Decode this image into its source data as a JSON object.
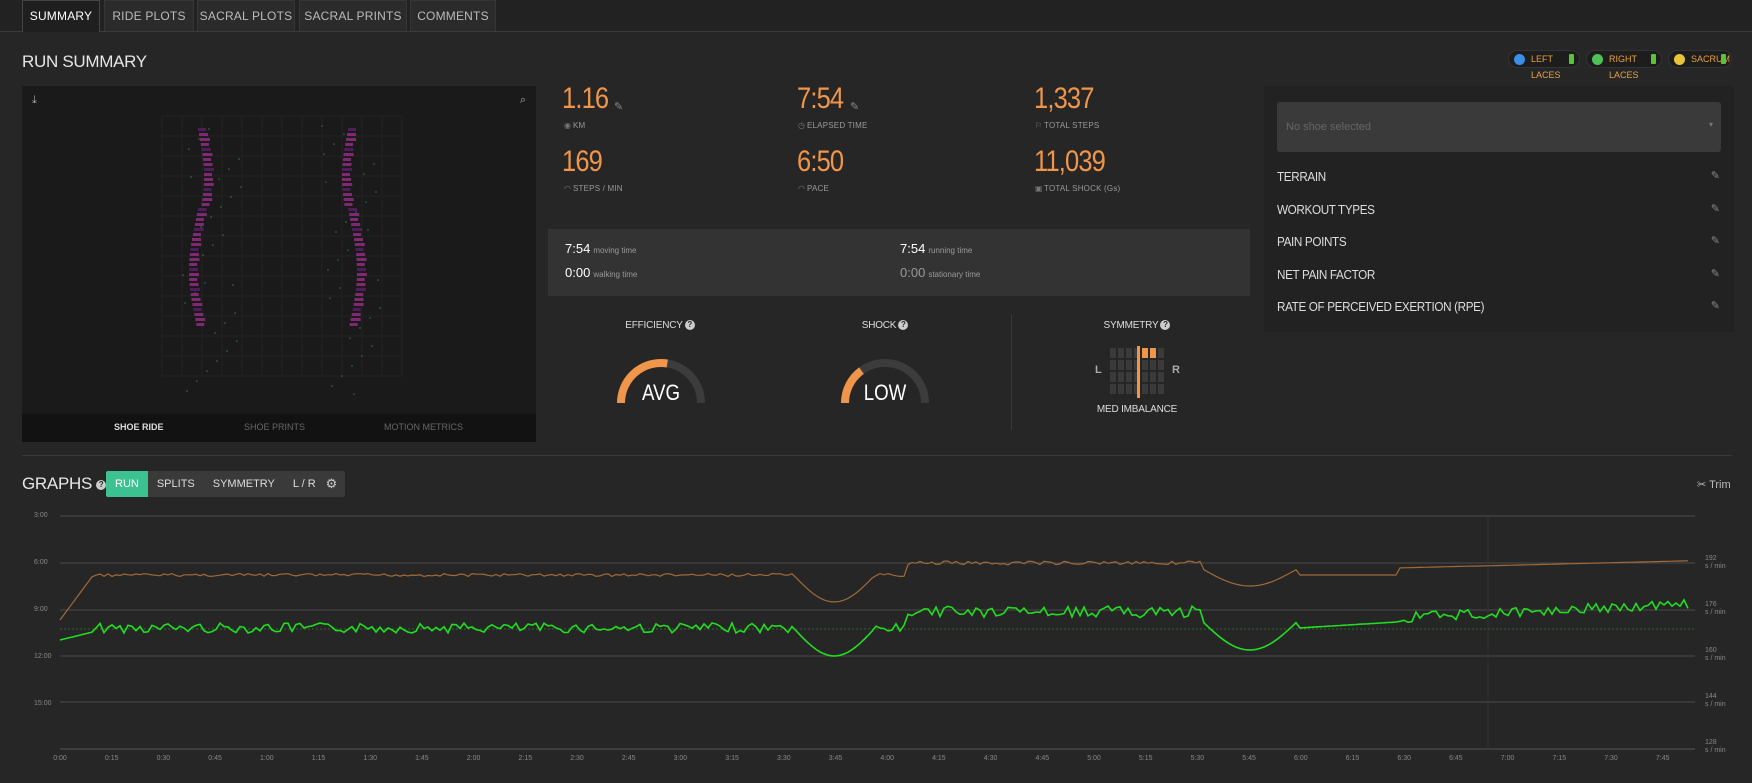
{
  "tabs": [
    {
      "label": "SUMMARY",
      "active": true
    },
    {
      "label": "RIDE PLOTS"
    },
    {
      "label": "SACRAL PLOTS"
    },
    {
      "label": "SACRAL PRINTS"
    },
    {
      "label": "COMMENTS"
    }
  ],
  "run_summary": {
    "title": "RUN SUMMARY",
    "sensors": [
      {
        "label": "LEFT LACES",
        "color": "#3a8ee6"
      },
      {
        "label": "RIGHT LACES",
        "color": "#4fc15a"
      },
      {
        "label": "SACRUM",
        "color": "#e8c43a"
      }
    ]
  },
  "ride_panel": {
    "tabs": [
      "SHOE RIDE",
      "SHOE PRINTS",
      "MOTION METRICS"
    ],
    "active_tab": "SHOE RIDE"
  },
  "metrics": {
    "distance": {
      "value": "1.16",
      "label": "KM"
    },
    "elapsed": {
      "value": "7:54",
      "label": "ELAPSED TIME"
    },
    "steps": {
      "value": "1,337",
      "label": "TOTAL STEPS"
    },
    "cadence": {
      "value": "169",
      "label": "STEPS / MIN"
    },
    "pace": {
      "value": "6:50",
      "label": "PACE"
    },
    "shock": {
      "value": "11,039",
      "label": "TOTAL SHOCK (Gs)"
    }
  },
  "times": {
    "moving": {
      "value": "7:54",
      "label": "moving time"
    },
    "running": {
      "value": "7:54",
      "label": "running time"
    },
    "walking": {
      "value": "0:00",
      "label": "walking time"
    },
    "stationary": {
      "value": "0:00",
      "label": "stationary time"
    }
  },
  "gauges": {
    "efficiency": {
      "title": "EFFICIENCY",
      "value": "AVG",
      "level": 0.55
    },
    "shock": {
      "title": "SHOCK",
      "value": "LOW",
      "level": 0.3
    },
    "symmetry": {
      "title": "SYMMETRY",
      "value": "MED IMBALANCE",
      "left": "L",
      "right": "R"
    }
  },
  "side_panel": {
    "shoe_placeholder": "No shoe selected",
    "items": [
      "TERRAIN",
      "WORKOUT TYPES",
      "PAIN POINTS",
      "NET PAIN FACTOR",
      "RATE OF PERCEIVED EXERTION (RPE)"
    ]
  },
  "graphs": {
    "title": "GRAPHS",
    "buttons": [
      "RUN",
      "SPLITS",
      "SYMMETRY",
      "L / R"
    ],
    "active_button": "RUN",
    "trim_label": "Trim",
    "y_left": [
      "3:00",
      "6:00",
      "9:00",
      "12:00",
      "15:00"
    ],
    "y_right": [
      {
        "v": "192",
        "u": "s / min"
      },
      {
        "v": "176",
        "u": "s / min"
      },
      {
        "v": "160",
        "u": "s / min"
      },
      {
        "v": "144",
        "u": "s / min"
      },
      {
        "v": "128",
        "u": "s / min"
      }
    ],
    "x_labels": [
      "0:00",
      "0:15",
      "0:30",
      "0:45",
      "1:00",
      "1:15",
      "1:30",
      "1:45",
      "2:00",
      "2:15",
      "2:30",
      "2:45",
      "3:00",
      "3:15",
      "3:30",
      "3:45",
      "4:00",
      "4:15",
      "4:30",
      "4:45",
      "5:00",
      "5:15",
      "5:30",
      "5:45",
      "6:00",
      "6:15",
      "6:30",
      "6:45",
      "7:00",
      "7:15",
      "7:30",
      "7:45"
    ]
  },
  "colors": {
    "accent": "#f0964a",
    "green": "#3cc190",
    "pace_line": "#22dd22",
    "cadence_line": "#a06a3a"
  }
}
